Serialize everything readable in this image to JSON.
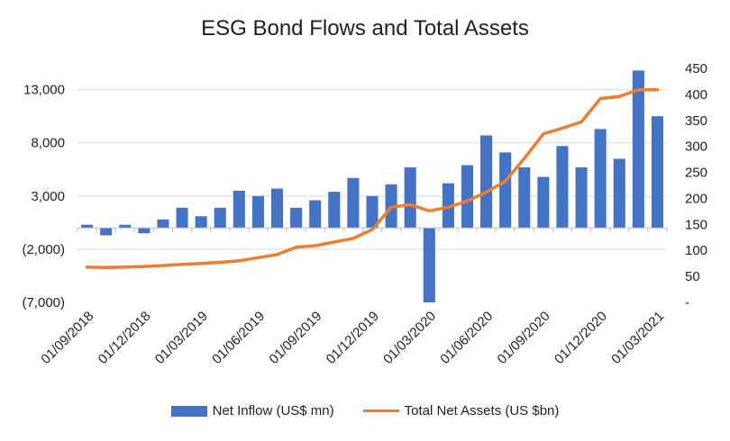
{
  "chart_data": {
    "type": "bar",
    "title": "ESG Bond Flows and Total Assets",
    "colors": {
      "bar": "#4472C4",
      "line": "#ED7D31",
      "grid": "#D9D9D9",
      "axis": "#BFBFBF"
    },
    "grid": true,
    "legend_placement": "bottom",
    "x_tick_labels": [
      "01/09/2018",
      "01/12/2018",
      "01/03/2019",
      "01/06/2019",
      "01/09/2019",
      "01/12/2019",
      "01/03/2020",
      "01/06/2020",
      "01/09/2020",
      "01/12/2020",
      "01/03/2021"
    ],
    "left_axis": {
      "ylim": [
        -7000,
        15000
      ],
      "ticks": [
        -7000,
        -2000,
        3000,
        8000,
        13000
      ],
      "tick_labels": [
        "(7,000)",
        "(2,000)",
        "3,000",
        "8,000",
        "13,000"
      ]
    },
    "right_axis": {
      "ylim": [
        0,
        450
      ],
      "ticks": [
        0,
        50,
        100,
        150,
        200,
        250,
        300,
        350,
        400,
        450
      ],
      "tick_labels": [
        "-",
        "50",
        "100",
        "150",
        "200",
        "250",
        "300",
        "350",
        "400",
        "450"
      ]
    },
    "categories": [
      "2018-09",
      "2018-10",
      "2018-11",
      "2018-12",
      "2019-01",
      "2019-02",
      "2019-03",
      "2019-04",
      "2019-05",
      "2019-06",
      "2019-07",
      "2019-08",
      "2019-09",
      "2019-10",
      "2019-11",
      "2019-12",
      "2020-01",
      "2020-02",
      "2020-03",
      "2020-04",
      "2020-05",
      "2020-06",
      "2020-07",
      "2020-08",
      "2020-09",
      "2020-10",
      "2020-11",
      "2020-12",
      "2021-01",
      "2021-02",
      "2021-03"
    ],
    "series": [
      {
        "name": "Net Inflow (US$ mn)",
        "axis": "left",
        "type": "bar",
        "values": [
          300,
          -700,
          300,
          -500,
          800,
          1900,
          1100,
          1900,
          3500,
          3000,
          3700,
          1900,
          2600,
          3400,
          4700,
          3000,
          4100,
          5700,
          -7000,
          4200,
          5900,
          8700,
          7100,
          5700,
          4800,
          7700,
          5700,
          9300,
          6500,
          14800,
          10500
        ]
      },
      {
        "name": "Total Net Assets (US $bn)",
        "axis": "right",
        "type": "line",
        "values": [
          68,
          67,
          68,
          69,
          71,
          73,
          75,
          77,
          80,
          86,
          92,
          106,
          109,
          116,
          123,
          140,
          183,
          188,
          176,
          183,
          195,
          212,
          233,
          277,
          324,
          335,
          347,
          392,
          396,
          409,
          409
        ]
      }
    ]
  }
}
